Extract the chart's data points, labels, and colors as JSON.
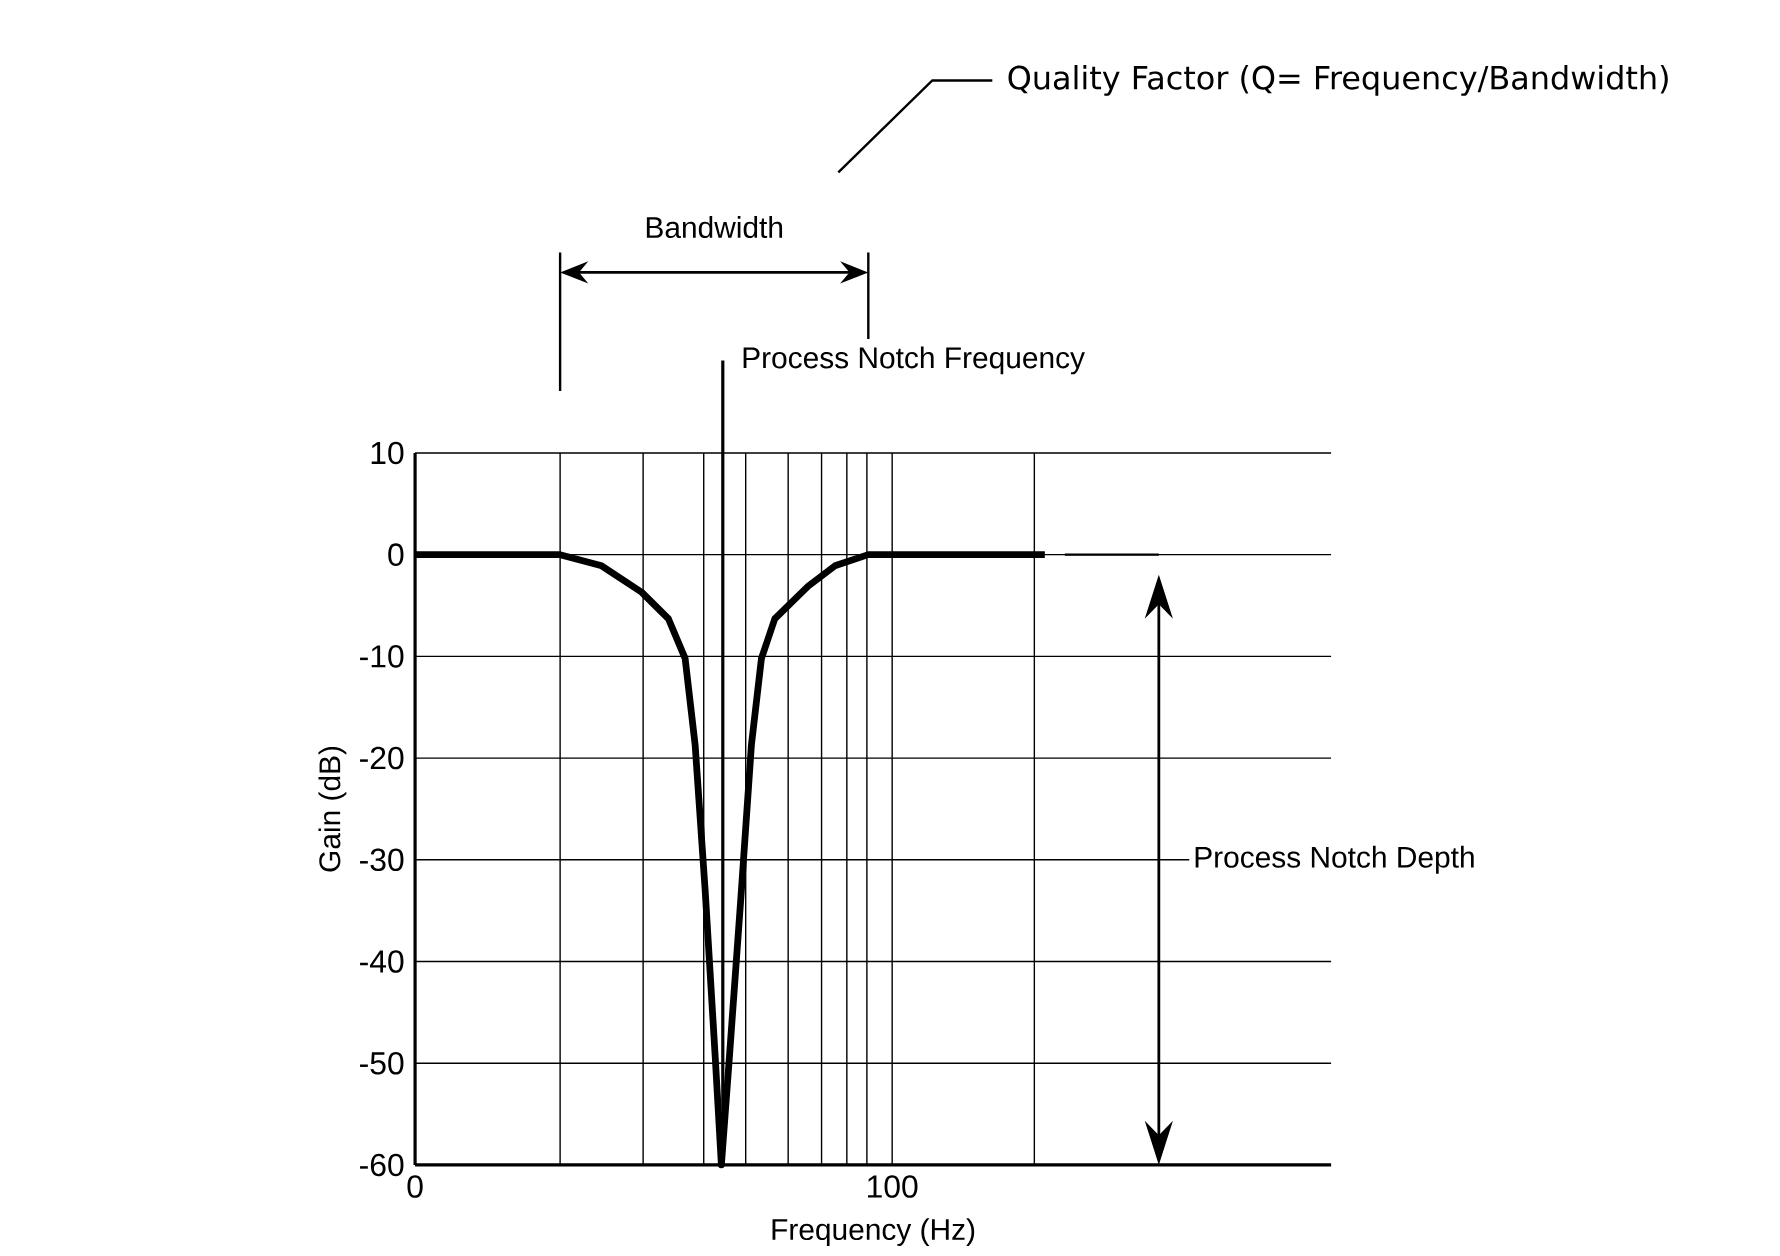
{
  "chart_data": {
    "type": "line",
    "xlabel": "Frequency (Hz)",
    "ylabel": "Gain (dB)",
    "xlim": [
      0,
      192
    ],
    "ylim": [
      -60,
      10
    ],
    "xticks": [
      0,
      {
        "value": 30.4,
        "label": null
      },
      {
        "value": 47.8,
        "label": null
      },
      {
        "value": 60.5,
        "label": null
      },
      {
        "value": 69.3,
        "label": null
      },
      {
        "value": 78.2,
        "label": null
      },
      {
        "value": 85.2,
        "label": null
      },
      {
        "value": 90.5,
        "label": null
      },
      {
        "value": 94.7,
        "label": null
      },
      100,
      {
        "value": 129.8,
        "label": null
      }
    ],
    "yticks": [
      -60,
      -50,
      -40,
      -30,
      -20,
      -10,
      0,
      10
    ],
    "grid": true,
    "series": [
      {
        "color": "#000000",
        "x": [
          0,
          30.4,
          39.1,
          47.5,
          53.1,
          56.6,
          58.7,
          60.8,
          62.9,
          64.2,
          65.9,
          68.4,
          70.5,
          72.6,
          75.4,
          82.4,
          88,
          95,
          132
        ],
        "values": [
          0,
          0,
          -1.1,
          -3.7,
          -6.3,
          -10.2,
          -18.7,
          -33,
          -49.3,
          -60,
          -49.3,
          -33,
          -18.7,
          -10.2,
          -6.3,
          -3.1,
          -1.1,
          0,
          0
        ]
      }
    ],
    "ref_lines": [
      {
        "axis": "x",
        "value": 64.5,
        "label": "Process Notch Frequency"
      }
    ],
    "annotations": [
      "Bandwidth",
      "Quality Factor (Q= Frequency/Bandwidth)",
      "Process Notch Depth"
    ]
  }
}
